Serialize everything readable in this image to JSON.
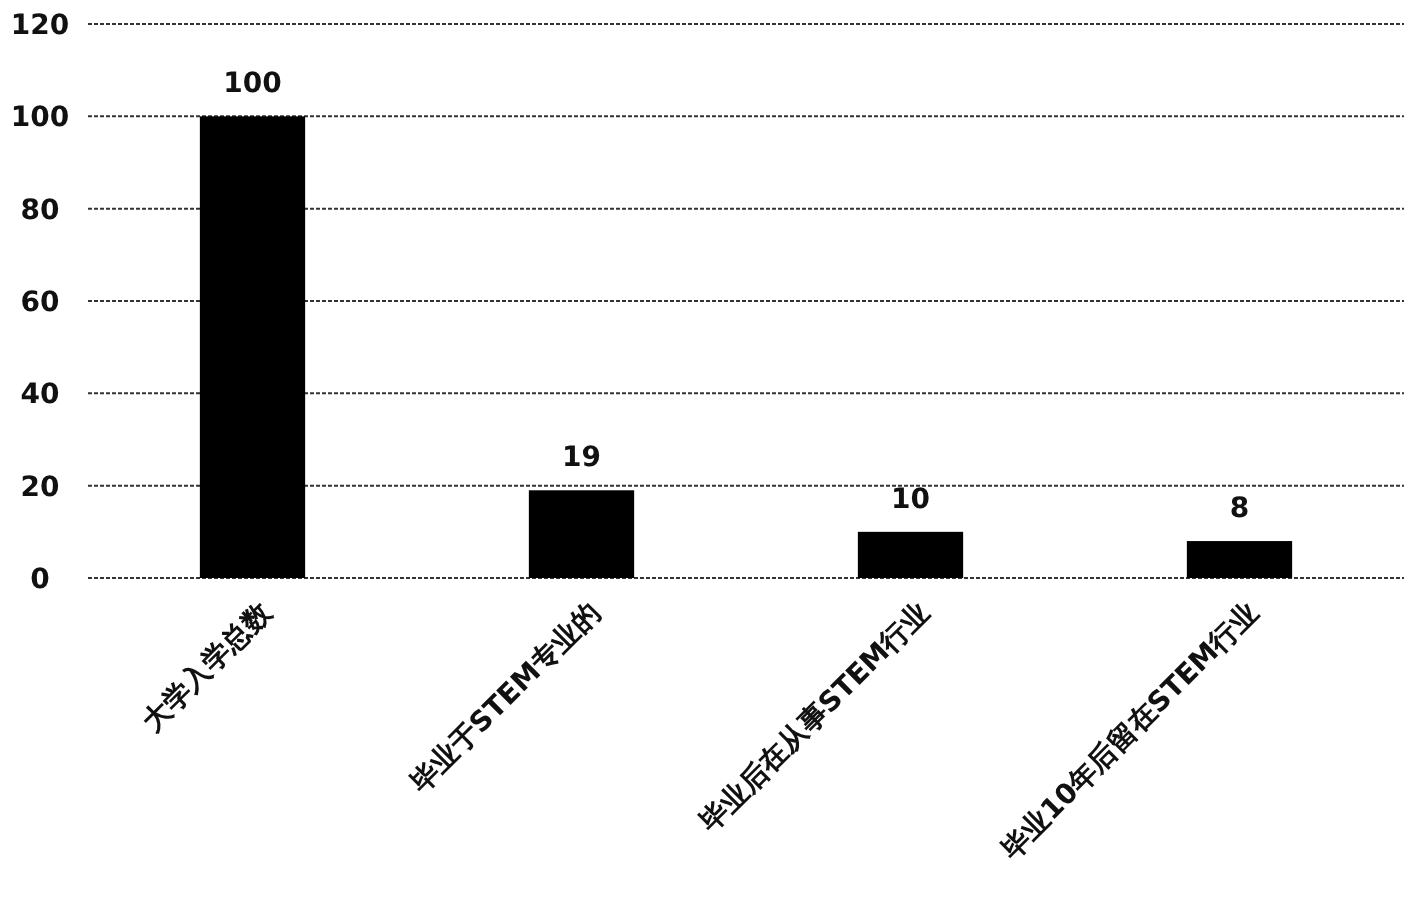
{
  "chart_data": {
    "type": "bar",
    "categories": [
      "大学入学总数",
      "毕业于STEM专业的",
      "毕业后在从事STEM行业",
      "毕业10年后留在STEM行业"
    ],
    "values": [
      100,
      19,
      10,
      8
    ],
    "color": "#000000",
    "ylim": [
      0,
      120
    ],
    "yticks": [
      0,
      20,
      40,
      60,
      80,
      100,
      120
    ],
    "grid": "y",
    "data_labels": true
  }
}
